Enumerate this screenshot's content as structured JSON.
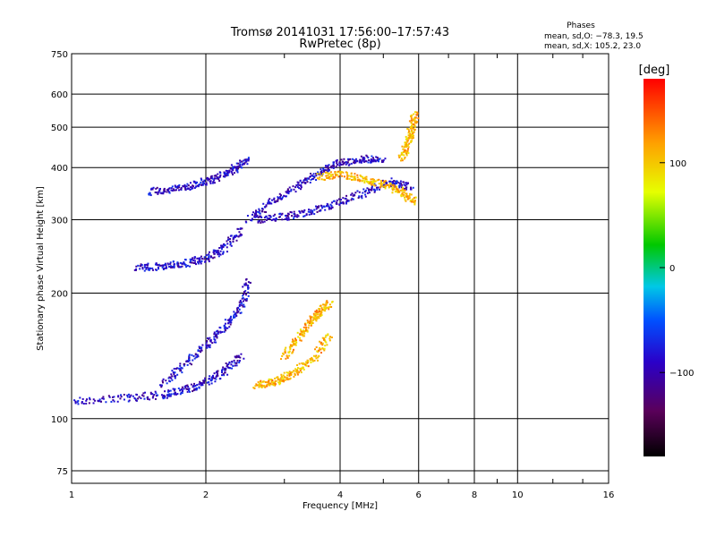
{
  "chart_data": {
    "type": "scatter",
    "title": "Tromsø 20141031 17:56:00–17:57:43",
    "subtitle": "RwPretec (8p)",
    "xlabel": "Frequency [MHz]",
    "ylabel": "Stationary phase Virtual Height [km]",
    "x_scale": "log2",
    "y_scale": "log",
    "xlim": [
      1,
      16
    ],
    "ylim": [
      70,
      750
    ],
    "x_ticks": [
      1,
      2,
      4,
      6,
      8,
      10,
      16
    ],
    "x_tick_labels": [
      "1",
      "2",
      "4",
      "6",
      "8",
      "10",
      "16"
    ],
    "x_minor_ticks": [
      3,
      5,
      7,
      9,
      12,
      14
    ],
    "y_ticks": [
      75,
      100,
      200,
      300,
      400,
      500,
      600,
      750
    ],
    "y_tick_labels": [
      "75",
      "100",
      "200",
      "300",
      "400",
      "500",
      "600",
      "750"
    ],
    "grid": true,
    "phases": {
      "title": "Phases",
      "line_o": "mean, sd,O: −78.3, 19.5",
      "line_x": "mean, sd,X: 105.2, 23.0"
    },
    "colorbar": {
      "label": "[deg]",
      "range": [
        -180,
        180
      ],
      "ticks": [
        100,
        0,
        -100
      ],
      "tick_labels": [
        "100",
        "0",
        "−100"
      ],
      "colormap": "rainbow: black (−180) → purple → blue → cyan → green → yellow → orange → red (180)"
    },
    "series": [
      {
        "mode": "O",
        "color_value_approx": -90,
        "traces": [
          {
            "x": [
              1.0,
              1.3,
              1.6,
              1.8,
              2.0,
              2.2,
              2.4
            ],
            "y": [
              110,
              112,
              114,
              117,
              122,
              130,
              142
            ]
          },
          {
            "x": [
              1.6,
              1.8,
              2.0,
              2.2,
              2.4,
              2.5
            ],
            "y": [
              120,
              135,
              150,
              165,
              185,
              215
            ]
          },
          {
            "x": [
              1.4,
              1.6,
              1.8,
              2.0,
              2.2,
              2.4
            ],
            "y": [
              230,
              232,
              236,
              242,
              255,
              285
            ]
          },
          {
            "x": [
              1.5,
              1.7,
              1.9,
              2.1,
              2.3,
              2.5
            ],
            "y": [
              350,
              355,
              365,
              375,
              395,
              420
            ]
          },
          {
            "x": [
              2.6,
              3.0,
              3.5,
              4.0,
              4.6,
              5.2,
              5.8
            ],
            "y": [
              300,
              305,
              315,
              330,
              350,
              370,
              360
            ]
          },
          {
            "x": [
              2.5,
              2.8,
              3.2,
              3.6,
              4.0,
              4.5,
              5.0
            ],
            "y": [
              300,
              330,
              360,
              390,
              410,
              420,
              415
            ]
          }
        ]
      },
      {
        "mode": "X",
        "color_value_approx": 110,
        "traces": [
          {
            "x": [
              2.6,
              2.8,
              3.0,
              3.2,
              3.5,
              3.8
            ],
            "y": [
              120,
              122,
              125,
              130,
              140,
              160
            ]
          },
          {
            "x": [
              3.0,
              3.2,
              3.4,
              3.6,
              3.8
            ],
            "y": [
              140,
              155,
              170,
              180,
              190
            ]
          },
          {
            "x": [
              3.6,
              4.0,
              4.5,
              5.0,
              5.5,
              5.9
            ],
            "y": [
              380,
              385,
              375,
              365,
              350,
              330
            ]
          },
          {
            "x": [
              5.5,
              5.7,
              5.8,
              5.9
            ],
            "y": [
              420,
              460,
              500,
              540
            ]
          }
        ]
      }
    ]
  }
}
